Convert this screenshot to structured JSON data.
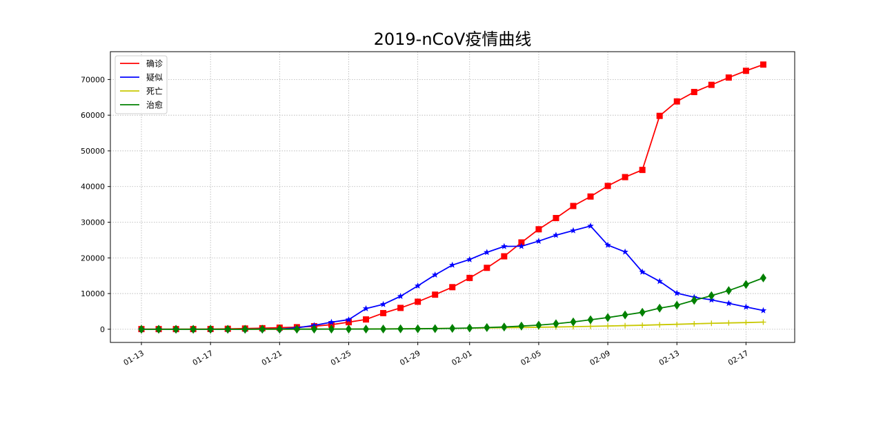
{
  "chart_data": {
    "type": "line",
    "title": "2019-nCoV疫情曲线",
    "xlabel": "",
    "ylabel": "",
    "x": [
      "01-13",
      "01-14",
      "01-15",
      "01-16",
      "01-17",
      "01-18",
      "01-19",
      "01-20",
      "01-21",
      "01-22",
      "01-23",
      "01-24",
      "01-25",
      "01-26",
      "01-27",
      "01-28",
      "01-29",
      "01-30",
      "01-31",
      "02-01",
      "02-02",
      "02-03",
      "02-04",
      "02-05",
      "02-06",
      "02-07",
      "02-08",
      "02-09",
      "02-10",
      "02-11",
      "02-12",
      "02-13",
      "02-14",
      "02-15",
      "02-16",
      "02-17",
      "02-18"
    ],
    "xticks": [
      "01-13",
      "01-17",
      "01-21",
      "01-25",
      "01-29",
      "02-01",
      "02-05",
      "02-09",
      "02-13",
      "02-17"
    ],
    "yticks": [
      0,
      10000,
      20000,
      30000,
      40000,
      50000,
      60000,
      70000
    ],
    "ylim": [
      -3700,
      77800
    ],
    "grid": true,
    "legend_position": "top-left",
    "series": [
      {
        "name": "确诊",
        "color": "#ff0000",
        "marker": "square",
        "values": [
          41,
          41,
          41,
          45,
          62,
          121,
          198,
          291,
          440,
          571,
          830,
          1287,
          1975,
          2744,
          4515,
          5974,
          7711,
          9692,
          11791,
          14380,
          17205,
          20438,
          24324,
          28018,
          31161,
          34546,
          37198,
          40171,
          42638,
          44653,
          59804,
          63851,
          66492,
          68500,
          70548,
          72436,
          74185
        ]
      },
      {
        "name": "疑似",
        "color": "#0000ff",
        "marker": "star",
        "values": [
          0,
          0,
          0,
          0,
          0,
          0,
          0,
          54,
          37,
          393,
          1072,
          1965,
          2684,
          5794,
          6973,
          9239,
          12167,
          15238,
          17988,
          19544,
          21558,
          23214,
          23260,
          24702,
          26359,
          27657,
          28942,
          23589,
          21675,
          16067,
          13435,
          10109,
          8969,
          8228,
          7264,
          6242,
          5248
        ]
      },
      {
        "name": "死亡",
        "color": "#c8c800",
        "marker": "plus",
        "values": [
          1,
          1,
          1,
          2,
          2,
          3,
          4,
          6,
          9,
          17,
          25,
          41,
          56,
          80,
          106,
          132,
          170,
          213,
          259,
          304,
          361,
          425,
          490,
          563,
          636,
          722,
          811,
          908,
          1016,
          1113,
          1259,
          1380,
          1523,
          1665,
          1770,
          1868,
          2004
        ]
      },
      {
        "name": "治愈",
        "color": "#008000",
        "marker": "diamond",
        "values": [
          0,
          0,
          0,
          0,
          0,
          0,
          0,
          25,
          25,
          28,
          34,
          38,
          49,
          51,
          60,
          103,
          124,
          171,
          243,
          328,
          475,
          632,
          892,
          1153,
          1540,
          2050,
          2649,
          3281,
          3996,
          4740,
          5911,
          6723,
          8096,
          9419,
          10844,
          12552,
          14376
        ]
      }
    ]
  }
}
